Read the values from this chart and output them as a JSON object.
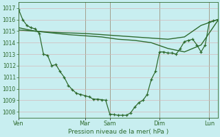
{
  "bg_color": "#c8eef0",
  "grid_color": "#d4b8b8",
  "line_color": "#2d6a2d",
  "xlabel_text": "Pression niveau de la mer( hPa )",
  "ylim": [
    1007.5,
    1017.5
  ],
  "yticks": [
    1008,
    1009,
    1010,
    1011,
    1012,
    1013,
    1014,
    1015,
    1016,
    1017
  ],
  "day_labels": [
    "Ven",
    "Mar",
    "Sam",
    "Dim",
    "Lun"
  ],
  "day_positions": [
    0,
    8,
    11,
    17,
    23
  ],
  "xlim": [
    0,
    24
  ],
  "series1_x": [
    0,
    0.5,
    1,
    1.5,
    2,
    2.5,
    3,
    3.5,
    4,
    4.5,
    5,
    5.5,
    6,
    6.5,
    7,
    7.5,
    8,
    8.5,
    9,
    9.5,
    10,
    10.5,
    11,
    11.5,
    12,
    12.5,
    13,
    13.5,
    14,
    14.5,
    15,
    15.5,
    16,
    16.5,
    17,
    17.5,
    18,
    18.5,
    19,
    19.5,
    20,
    20.5,
    21,
    21.5,
    22,
    22.5,
    23,
    23.5,
    24
  ],
  "series1_y": [
    1016.9,
    1016.0,
    1015.5,
    1015.3,
    1015.2,
    1014.8,
    1013.0,
    1012.9,
    1012.0,
    1012.1,
    1011.5,
    1011.0,
    1010.3,
    1009.9,
    1009.6,
    1009.5,
    1009.4,
    1009.3,
    1009.1,
    1009.1,
    1009.05,
    1009.0,
    1007.8,
    1007.75,
    1007.7,
    1007.7,
    1007.7,
    1007.9,
    1008.4,
    1008.8,
    1009.0,
    1009.5,
    1010.8,
    1011.5,
    1013.2,
    1013.2,
    1013.1,
    1013.1,
    1013.0,
    1013.5,
    1014.1,
    1014.2,
    1014.3,
    1013.8,
    1013.2,
    1013.8,
    1015.8,
    1015.9,
    1016.0
  ],
  "series2_x": [
    0,
    2,
    4,
    6,
    8,
    10,
    12,
    14,
    16,
    18,
    20,
    22,
    24
  ],
  "series2_y": [
    1015.1,
    1015.0,
    1014.9,
    1014.85,
    1014.8,
    1014.7,
    1014.6,
    1014.5,
    1014.4,
    1014.3,
    1014.5,
    1015.5,
    1016.0
  ],
  "series3_x": [
    0,
    2,
    4,
    6,
    8,
    10,
    12,
    14,
    16,
    18,
    20,
    22,
    24
  ],
  "series3_y": [
    1015.3,
    1015.0,
    1014.85,
    1014.7,
    1014.6,
    1014.5,
    1014.3,
    1014.2,
    1014.0,
    1013.5,
    1013.2,
    1013.8,
    1015.9
  ]
}
